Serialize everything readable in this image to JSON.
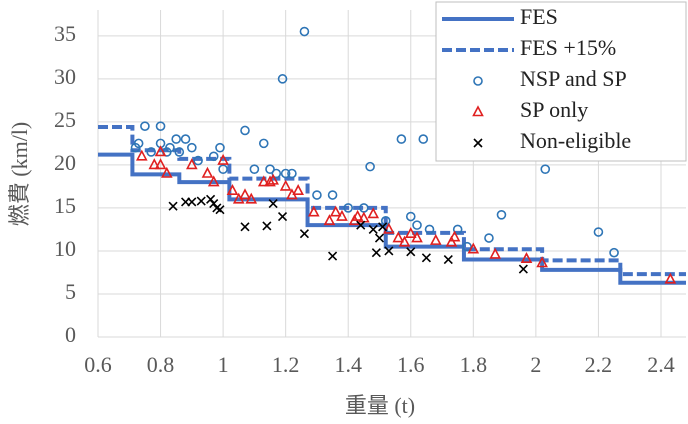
{
  "chart_data": {
    "type": "scatter",
    "x_label": "重量 (t)",
    "y_label": "燃費 (km/l)",
    "xlim": [
      0.6,
      2.48
    ],
    "ylim": [
      0,
      38
    ],
    "xticks": [
      0.6,
      0.8,
      1,
      1.2,
      1.4,
      1.6,
      1.8,
      2,
      2.2,
      2.4
    ],
    "yticks": [
      0,
      5,
      10,
      15,
      20,
      25,
      30,
      35
    ],
    "grid": true,
    "legend": "top-right",
    "series": [
      {
        "name": "FES",
        "color": "#4472c4",
        "mode": "line",
        "dash": false,
        "x": [
          0.6,
          0.71,
          0.71,
          0.86,
          0.86,
          1.02,
          1.02,
          1.27,
          1.27,
          1.52,
          1.52,
          1.77,
          1.77,
          2.02,
          2.02,
          2.27,
          2.27,
          2.48
        ],
        "values": [
          21.2,
          21.2,
          18.9,
          18.9,
          18.0,
          18.0,
          16.0,
          16.0,
          13.0,
          13.0,
          10.5,
          10.5,
          9.0,
          9.0,
          7.8,
          7.8,
          6.3,
          6.3
        ]
      },
      {
        "name": "FES +15%",
        "color": "#4472c4",
        "mode": "line",
        "dash": true,
        "x": [
          0.6,
          0.71,
          0.71,
          0.86,
          0.86,
          1.02,
          1.02,
          1.27,
          1.27,
          1.52,
          1.52,
          1.77,
          1.77,
          2.02,
          2.02,
          2.27,
          2.27,
          2.48
        ],
        "values": [
          24.4,
          24.4,
          21.7,
          21.7,
          20.7,
          20.7,
          18.4,
          18.4,
          15.0,
          15.0,
          12.1,
          12.1,
          10.2,
          10.2,
          8.9,
          8.9,
          7.3,
          7.3
        ]
      },
      {
        "name": "NSP and SP",
        "color": "#2e75b6",
        "mode": "circle",
        "x": [
          0.72,
          0.73,
          0.75,
          0.77,
          0.8,
          0.8,
          0.82,
          0.83,
          0.85,
          0.86,
          0.88,
          0.9,
          0.92,
          0.97,
          0.99,
          1.0,
          1.07,
          1.1,
          1.13,
          1.15,
          1.17,
          1.19,
          1.2,
          1.22,
          1.26,
          1.3,
          1.35,
          1.4,
          1.45,
          1.47,
          1.52,
          1.57,
          1.6,
          1.62,
          1.64,
          1.66,
          1.75,
          1.78,
          1.85,
          1.89,
          2.03,
          2.2,
          2.25
        ],
        "values": [
          22,
          22.5,
          24.5,
          21.5,
          24.5,
          22.5,
          21.5,
          22,
          23,
          21.5,
          23,
          22,
          20.5,
          21,
          22,
          19.5,
          24,
          19.5,
          22.5,
          19.5,
          19,
          30,
          19,
          19,
          35.5,
          16.5,
          16.5,
          15,
          15,
          19.8,
          13.5,
          23,
          14,
          13,
          23,
          12.5,
          12.5,
          10.5,
          11.5,
          14.2,
          19.5,
          12.2,
          9.8
        ]
      },
      {
        "name": "SP only",
        "color": "#e02020",
        "mode": "triangle",
        "x": [
          0.74,
          0.78,
          0.8,
          0.82,
          0.8,
          0.9,
          0.95,
          0.97,
          1.0,
          1.03,
          1.05,
          1.07,
          1.09,
          1.13,
          1.15,
          1.16,
          1.2,
          1.22,
          1.24,
          1.29,
          1.34,
          1.36,
          1.38,
          1.42,
          1.43,
          1.45,
          1.48,
          1.53,
          1.56,
          1.58,
          1.6,
          1.62,
          1.68,
          1.73,
          1.74,
          1.8,
          1.87,
          1.97,
          2.02,
          2.43
        ],
        "values": [
          21,
          20,
          20,
          19,
          21.5,
          20,
          19,
          18,
          20.5,
          17,
          16,
          16.5,
          16,
          18,
          18,
          18.2,
          17.5,
          16.5,
          17,
          14.5,
          13.5,
          14.5,
          14,
          13.5,
          14,
          13.8,
          14.3,
          12.5,
          11.5,
          11,
          12,
          11.5,
          11.2,
          11,
          11.6,
          10.2,
          9.6,
          9.1,
          8.6,
          6.7
        ]
      },
      {
        "name": "Non-eligible",
        "color": "#000000",
        "mode": "cross",
        "x": [
          0.84,
          0.88,
          0.9,
          0.93,
          0.96,
          0.97,
          0.98,
          0.99,
          1.07,
          1.14,
          1.16,
          1.19,
          1.26,
          1.35,
          1.44,
          1.48,
          1.49,
          1.5,
          1.51,
          1.53,
          1.6,
          1.65,
          1.72,
          1.96
        ],
        "values": [
          15.2,
          15.7,
          15.7,
          15.8,
          16,
          15.5,
          15,
          14.8,
          12.8,
          12.9,
          15.5,
          14,
          12,
          9.4,
          13,
          12.5,
          9.8,
          11.5,
          12.8,
          10,
          9.9,
          9.2,
          9,
          7.9
        ]
      }
    ]
  }
}
